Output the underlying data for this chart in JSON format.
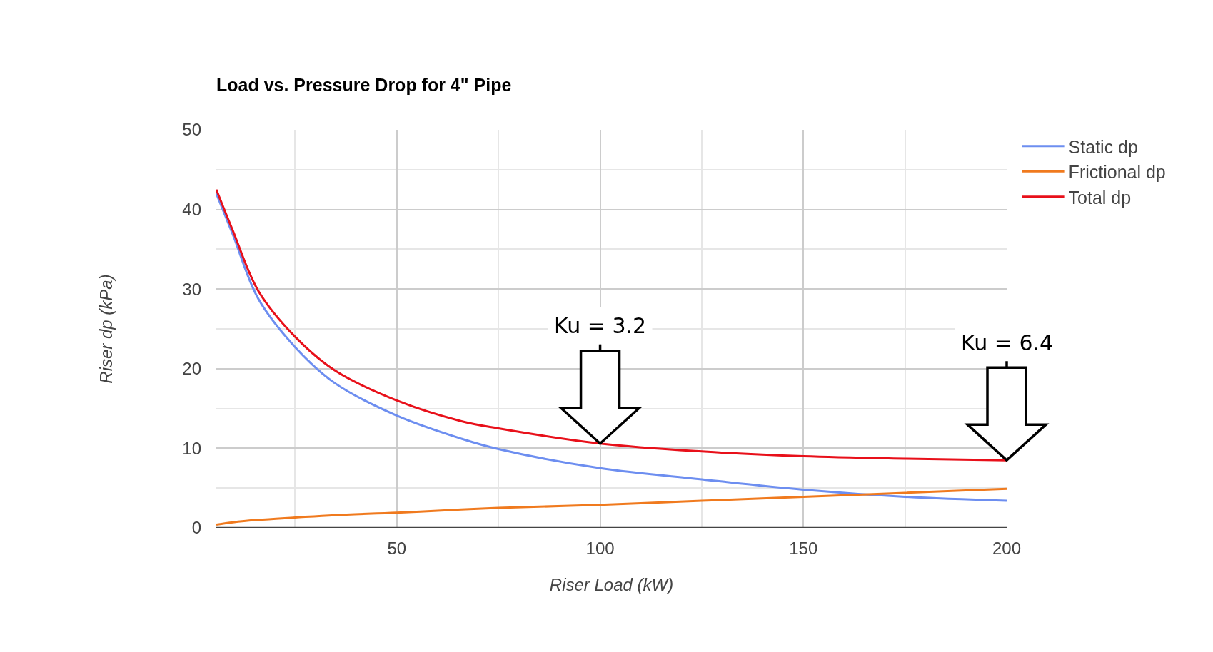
{
  "chart_data": {
    "type": "line",
    "title": "Load vs. Pressure Drop for 4\" Pipe",
    "xlabel": "Riser Load (kW)",
    "ylabel": "Riser dp (kPa)",
    "x": [
      5.6,
      9.7,
      15.9,
      25,
      34.7,
      50,
      65.9,
      75,
      100,
      125,
      150,
      175,
      200
    ],
    "series": [
      {
        "name": "Static dp",
        "color": "#6d8ef0",
        "values": [
          42,
          36.8,
          28.8,
          22.7,
          18.2,
          14.1,
          11.2,
          9.9,
          7.5,
          6.1,
          4.8,
          3.9,
          3.4
        ]
      },
      {
        "name": "Frictional dp",
        "color": "#f07a1e",
        "values": [
          0.4,
          0.7,
          1.0,
          1.3,
          1.6,
          1.9,
          2.3,
          2.5,
          2.9,
          3.4,
          3.9,
          4.4,
          4.9
        ]
      },
      {
        "name": "Total dp",
        "color": "#e8101a",
        "values": [
          42.5,
          37.3,
          29.8,
          24.0,
          19.8,
          16.0,
          13.4,
          12.5,
          10.6,
          9.6,
          9.0,
          8.7,
          8.5
        ]
      }
    ],
    "xlim": [
      5.6,
      200
    ],
    "ylim": [
      0,
      50
    ],
    "xticks": [
      {
        "value": 25,
        "label": null
      },
      50,
      {
        "value": 75,
        "label": null
      },
      100,
      {
        "value": 125,
        "label": null
      },
      150,
      {
        "value": 175,
        "label": null
      },
      200
    ],
    "yticks": [
      0,
      {
        "value": 5,
        "label": null
      },
      10,
      {
        "value": 15,
        "label": null
      },
      20,
      {
        "value": 25,
        "label": null
      },
      30,
      {
        "value": 35,
        "label": null
      },
      40,
      {
        "value": 45,
        "label": null
      },
      50
    ],
    "grid": true,
    "legend": "top right",
    "marker": "none",
    "line_style": "solid",
    "annotations": [
      {
        "text": "Ku = 3.2",
        "x": 100,
        "y": 10.6
      },
      {
        "text": "Ku = 6.4",
        "x": 200,
        "y": 8.5
      }
    ]
  }
}
